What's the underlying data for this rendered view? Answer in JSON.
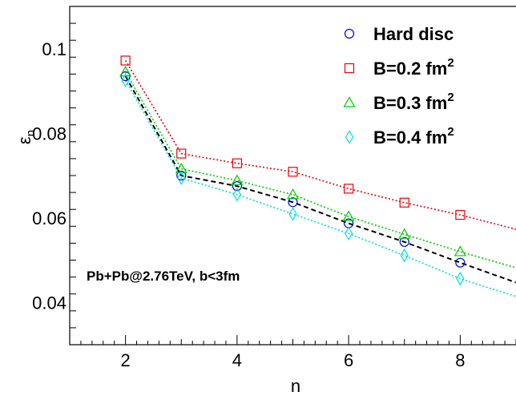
{
  "chart_data": {
    "type": "line",
    "title": "",
    "xlabel": "n",
    "ylabel_base": "ε",
    "ylabel_sub": "n",
    "xlim": [
      1,
      9
    ],
    "ylim": [
      0.03,
      0.11
    ],
    "x_ticks": [
      2,
      4,
      6,
      8
    ],
    "x_tick_labels": [
      "2",
      "4",
      "6",
      "8"
    ],
    "y_ticks": [
      0.04,
      0.06,
      0.08,
      0.1
    ],
    "y_tick_labels": [
      "0.04",
      "0.06",
      "0.08",
      "0.1"
    ],
    "grid": false,
    "legend_position": "top-right",
    "annotation": "Pb+Pb@2.76TeV, b<3fm",
    "series": [
      {
        "name": "Hard disc",
        "marker": "circle",
        "color": "#0000ee",
        "line_color": "#000000",
        "line_style": "dashed",
        "x": [
          2,
          3,
          4,
          5,
          6,
          7,
          8
        ],
        "y": [
          0.0935,
          0.07,
          0.0675,
          0.0637,
          0.0587,
          0.0543,
          0.0494
        ],
        "extend_to": [
          9,
          0.0447
        ]
      },
      {
        "name": "B=0.2 fm",
        "name_sup": "2",
        "marker": "square",
        "color": "#e8000b",
        "line_color": "#e8000b",
        "line_style": "dotted",
        "x": [
          2,
          3,
          4,
          5,
          6,
          7,
          8
        ],
        "y": [
          0.0972,
          0.0752,
          0.0729,
          0.0709,
          0.0669,
          0.0636,
          0.0607
        ],
        "extend_to": [
          9,
          0.0573
        ]
      },
      {
        "name": "B=0.3 fm",
        "name_sup": "2",
        "marker": "triangle",
        "color": "#00cc00",
        "line_color": "#00cc00",
        "line_style": "dotted",
        "x": [
          2,
          3,
          4,
          5,
          6,
          7,
          8
        ],
        "y": [
          0.0945,
          0.0716,
          0.0688,
          0.0655,
          0.0603,
          0.0561,
          0.052
        ],
        "extend_to": [
          9,
          0.0482
        ]
      },
      {
        "name": "B=0.4 fm",
        "name_sup": "2",
        "marker": "diamond",
        "color": "#00dddd",
        "line_color": "#00dddd",
        "line_style": "dotted",
        "x": [
          2,
          3,
          4,
          5,
          6,
          7,
          8
        ],
        "y": [
          0.0925,
          0.0694,
          0.0655,
          0.0609,
          0.0563,
          0.0511,
          0.0456
        ],
        "extend_to": [
          9,
          0.0414
        ]
      }
    ]
  }
}
